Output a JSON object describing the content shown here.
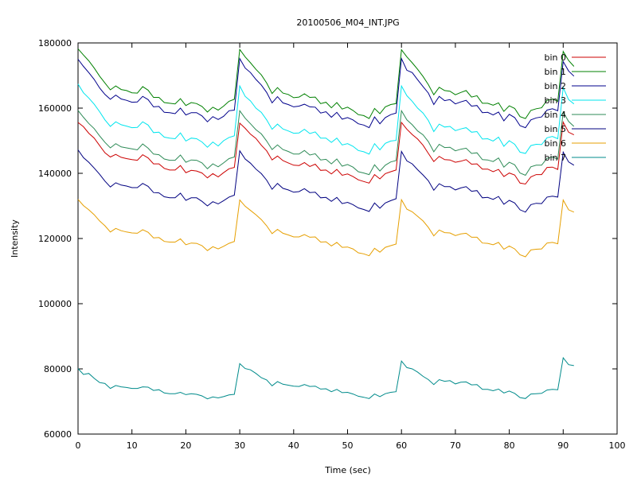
{
  "chart_data": {
    "type": "line",
    "title": "20100506_M04_INT.JPG",
    "xlabel": "Time (sec)",
    "ylabel": "Intensity",
    "xlim": [
      0,
      100
    ],
    "ylim": [
      60000,
      180000
    ],
    "xticks": [
      0,
      10,
      20,
      30,
      40,
      50,
      60,
      70,
      80,
      90,
      100
    ],
    "yticks": [
      60000,
      80000,
      100000,
      120000,
      140000,
      160000,
      180000
    ],
    "grid": false,
    "legend_position": "top-right",
    "x": [
      0,
      1,
      2,
      3,
      4,
      5,
      6,
      7,
      8,
      9,
      10,
      11,
      12,
      13,
      14,
      15,
      16,
      17,
      18,
      19,
      20,
      21,
      22,
      23,
      24,
      25,
      26,
      27,
      28,
      29,
      30,
      31,
      32,
      33,
      34,
      35,
      36,
      37,
      38,
      39,
      40,
      41,
      42,
      43,
      44,
      45,
      46,
      47,
      48,
      49,
      50,
      51,
      52,
      53,
      54,
      55,
      56,
      57,
      58,
      59,
      60,
      61,
      62,
      63,
      64,
      65,
      66,
      67,
      68,
      69,
      70,
      71,
      72,
      73,
      74,
      75,
      76,
      77,
      78,
      79,
      80,
      81,
      82,
      83,
      84,
      85,
      86,
      87,
      88,
      89,
      90,
      91,
      92
    ],
    "series": [
      {
        "name": "bin 0",
        "color": "#cc0000",
        "values": [
          155600,
          154300,
          152300,
          150800,
          148500,
          146300,
          145000,
          145800,
          144900,
          144500,
          144200,
          144000,
          145700,
          144700,
          142900,
          142900,
          141500,
          141000,
          141000,
          142400,
          140200,
          140900,
          140700,
          140100,
          138600,
          139900,
          138900,
          140200,
          141400,
          141800,
          155400,
          153800,
          152000,
          150700,
          148600,
          146900,
          144100,
          145300,
          143900,
          143200,
          142500,
          142400,
          143300,
          142100,
          142800,
          140900,
          141000,
          139800,
          141200,
          139400,
          139800,
          139000,
          138000,
          137500,
          137000,
          139600,
          138300,
          139900,
          140500,
          141000,
          155600,
          153500,
          151900,
          150500,
          148600,
          146100,
          143600,
          145200,
          144200,
          144100,
          143400,
          143700,
          144200,
          142800,
          142900,
          141300,
          141300,
          140500,
          141200,
          139000,
          140100,
          139500,
          137000,
          136700,
          138900,
          139600,
          139600,
          141800,
          141900,
          141200,
          155700,
          152600,
          151800
        ]
      },
      {
        "name": "bin 1",
        "color": "#008000",
        "values": [
          178200,
          176300,
          174500,
          172300,
          169800,
          167700,
          165600,
          166800,
          165700,
          165400,
          164700,
          164600,
          166600,
          165500,
          163300,
          163300,
          161700,
          161500,
          161300,
          162900,
          160800,
          161700,
          161400,
          160500,
          158800,
          160300,
          159400,
          160600,
          162100,
          162700,
          178000,
          175700,
          173900,
          171900,
          170200,
          167700,
          164500,
          166300,
          164600,
          164200,
          163200,
          163400,
          164400,
          163300,
          163400,
          161400,
          161800,
          160100,
          161700,
          159700,
          160300,
          159300,
          158000,
          157700,
          156800,
          159900,
          158300,
          160400,
          161100,
          161400,
          177900,
          175700,
          173900,
          171900,
          169700,
          167200,
          164100,
          166400,
          165400,
          165200,
          164100,
          164800,
          165400,
          163400,
          163800,
          161500,
          161500,
          160900,
          161600,
          159000,
          160700,
          159900,
          157400,
          156800,
          159300,
          159800,
          160100,
          162400,
          162800,
          162100,
          177400,
          174600,
          172800
        ]
      },
      {
        "name": "bin 2",
        "color": "#00008b",
        "values": [
          175000,
          172800,
          170900,
          168800,
          166200,
          164200,
          162700,
          164000,
          162800,
          162400,
          161800,
          161900,
          163600,
          162600,
          160400,
          160500,
          158700,
          158600,
          158300,
          160000,
          157900,
          158600,
          158600,
          157600,
          155800,
          157400,
          156500,
          157500,
          159200,
          159400,
          175200,
          172300,
          170900,
          168800,
          167100,
          164800,
          161600,
          163500,
          161600,
          161100,
          160400,
          160600,
          161200,
          160400,
          160300,
          158500,
          158900,
          157200,
          158700,
          156600,
          157100,
          156400,
          155200,
          154800,
          154000,
          157300,
          155200,
          157100,
          158000,
          158500,
          175200,
          171600,
          170900,
          168700,
          166600,
          164600,
          161100,
          163600,
          162300,
          162600,
          161300,
          161900,
          162400,
          160600,
          160800,
          158600,
          158700,
          157900,
          158800,
          156100,
          158100,
          157100,
          154600,
          154000,
          156400,
          157000,
          157300,
          159400,
          159800,
          159200,
          174300,
          171400,
          169800
        ]
      },
      {
        "name": "bin 3",
        "color": "#00e5ee",
        "values": [
          167400,
          164700,
          163100,
          161200,
          158900,
          156400,
          154400,
          155800,
          154900,
          154500,
          154000,
          154100,
          155800,
          154800,
          152500,
          152600,
          151100,
          150800,
          150600,
          152400,
          149900,
          150800,
          150600,
          149600,
          148000,
          149600,
          148400,
          150000,
          151000,
          151500,
          166800,
          163600,
          162200,
          160000,
          158700,
          156400,
          153500,
          155100,
          153600,
          153000,
          152300,
          152400,
          153500,
          152200,
          152700,
          150800,
          150800,
          149500,
          150800,
          148700,
          149100,
          148300,
          147000,
          146600,
          145900,
          149100,
          147200,
          149200,
          149900,
          150100,
          166800,
          163800,
          162100,
          160000,
          158500,
          156200,
          152800,
          155100,
          154200,
          154400,
          153100,
          153600,
          154000,
          152600,
          152800,
          150500,
          150600,
          149900,
          151100,
          148300,
          150000,
          148900,
          146500,
          146100,
          148500,
          148900,
          148800,
          150900,
          151300,
          150600,
          166300,
          162600,
          161300
        ]
      },
      {
        "name": "bin 4",
        "color": "#2e8b57",
        "values": [
          159300,
          157200,
          155300,
          153700,
          151500,
          149500,
          147800,
          149100,
          148100,
          147800,
          147500,
          147200,
          149000,
          147700,
          145900,
          145700,
          144400,
          144000,
          144000,
          145600,
          143400,
          144100,
          144000,
          143200,
          141400,
          142900,
          142000,
          143200,
          144500,
          145000,
          159200,
          156900,
          155200,
          153400,
          152100,
          149900,
          147300,
          148700,
          147300,
          146700,
          145900,
          145900,
          147000,
          145600,
          146000,
          144100,
          144300,
          142900,
          144400,
          142200,
          142700,
          141900,
          140500,
          140100,
          139600,
          142600,
          140700,
          142500,
          143500,
          143900,
          159200,
          156400,
          154900,
          153000,
          151800,
          149700,
          146600,
          148900,
          147900,
          148000,
          146900,
          147400,
          147700,
          146100,
          146300,
          144200,
          144100,
          143600,
          144700,
          141900,
          143400,
          142600,
          140100,
          139400,
          142000,
          142500,
          142500,
          144600,
          145000,
          144400,
          158800,
          155900,
          154400
        ]
      },
      {
        "name": "bin 5",
        "color": "#000080",
        "values": [
          147200,
          144800,
          143400,
          141600,
          139700,
          137600,
          135800,
          137100,
          136400,
          136100,
          135600,
          135600,
          136900,
          136000,
          134100,
          134000,
          132800,
          132500,
          132500,
          133900,
          131700,
          132500,
          132500,
          131400,
          130000,
          131300,
          130600,
          131600,
          132700,
          133300,
          146900,
          144400,
          143100,
          141300,
          139900,
          137900,
          135100,
          136900,
          135400,
          134900,
          134200,
          134400,
          135300,
          134100,
          134200,
          132500,
          132600,
          131400,
          132600,
          130700,
          131100,
          130400,
          129400,
          128900,
          128300,
          130900,
          129300,
          130900,
          131600,
          132200,
          146700,
          143800,
          142900,
          141100,
          139500,
          137700,
          134800,
          136800,
          135900,
          135900,
          134900,
          135500,
          135900,
          134500,
          134700,
          132500,
          132600,
          132000,
          132900,
          130500,
          131700,
          130900,
          128800,
          128100,
          130400,
          130800,
          130700,
          132700,
          133000,
          132700,
          146500,
          143500,
          142500
        ]
      },
      {
        "name": "bin 6",
        "color": "#e69f00",
        "values": [
          132000,
          130100,
          128800,
          127300,
          125400,
          123900,
          122000,
          123100,
          122400,
          122000,
          121700,
          121600,
          122700,
          121900,
          120200,
          120300,
          119100,
          118900,
          118900,
          119900,
          118100,
          118600,
          118500,
          117800,
          116300,
          117500,
          116800,
          117600,
          118500,
          119100,
          131800,
          129900,
          128600,
          127300,
          125800,
          123900,
          121500,
          122800,
          121600,
          121100,
          120500,
          120500,
          121200,
          120400,
          120500,
          118900,
          119000,
          117700,
          118800,
          117300,
          117400,
          116800,
          115600,
          115300,
          114700,
          117000,
          115800,
          117300,
          117800,
          118300,
          131900,
          129000,
          128200,
          126800,
          125400,
          123400,
          120800,
          122600,
          121800,
          121700,
          120900,
          121400,
          121600,
          120400,
          120400,
          118600,
          118500,
          118100,
          118800,
          116700,
          117700,
          116800,
          115000,
          114400,
          116500,
          116700,
          116800,
          118600,
          118800,
          118400,
          131800,
          128800,
          128100
        ]
      },
      {
        "name": "bin 7",
        "color": "#008b8b",
        "values": [
          80100,
          78300,
          78600,
          77100,
          75800,
          75500,
          74000,
          74900,
          74500,
          74300,
          74000,
          74000,
          74500,
          74400,
          73400,
          73600,
          72600,
          72400,
          72400,
          72800,
          72100,
          72400,
          72200,
          71700,
          70800,
          71400,
          71100,
          71500,
          72000,
          72200,
          81600,
          80100,
          79700,
          78600,
          77300,
          76600,
          74800,
          76100,
          75300,
          75000,
          74700,
          74600,
          75200,
          74600,
          74700,
          73800,
          73900,
          73000,
          73700,
          72700,
          72800,
          72300,
          71600,
          71300,
          70900,
          72300,
          71500,
          72400,
          72800,
          73000,
          82400,
          80400,
          80000,
          79000,
          77700,
          76700,
          75200,
          76700,
          76200,
          76400,
          75400,
          75900,
          76000,
          75100,
          75200,
          73700,
          73700,
          73300,
          73800,
          72600,
          73200,
          72500,
          71200,
          70900,
          72300,
          72400,
          72500,
          73500,
          73700,
          73600,
          83400,
          81300,
          81000
        ]
      }
    ]
  }
}
